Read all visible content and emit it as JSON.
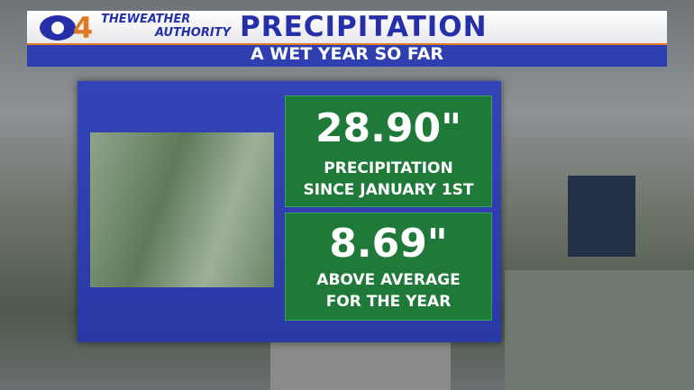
{
  "header": {
    "logo": "4",
    "brand_line1": "THEWEATHER",
    "brand_line2": "AUTHORITY",
    "title": "PRECIPITATION",
    "subtitle": "A WET YEAR SO FAR"
  },
  "panels": [
    {
      "value": "28.90\"",
      "label_line1": "PRECIPITATION",
      "label_line2": "SINCE JANUARY 1ST"
    },
    {
      "value": "8.69\"",
      "label_line1": "ABOVE AVERAGE",
      "label_line2": "FOR THE YEAR"
    }
  ]
}
